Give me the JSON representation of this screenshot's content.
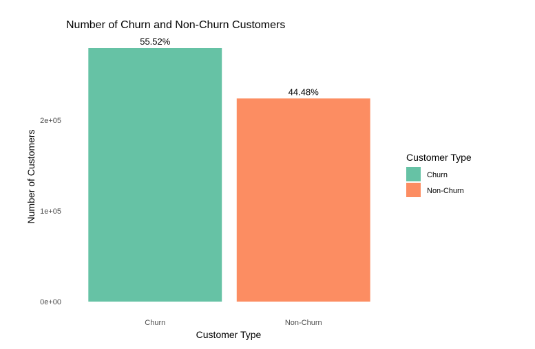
{
  "chart_data": {
    "type": "bar",
    "title": "Number of Churn and Non-Churn Customers",
    "xlabel": "Customer Type",
    "ylabel": "Number of Customers",
    "categories": [
      "Churn",
      "Non-Churn"
    ],
    "values": [
      279300,
      223800
    ],
    "data_labels": [
      "55.52%",
      "44.48%"
    ],
    "colors": [
      "#66c2a5",
      "#fc8d62"
    ],
    "ylim": [
      0,
      279300
    ],
    "yticks": [
      {
        "value": 0,
        "label": "0e+00"
      },
      {
        "value": 100000,
        "label": "1e+05"
      },
      {
        "value": 200000,
        "label": "2e+05"
      }
    ],
    "grid": false,
    "legend": {
      "title": "Customer Type",
      "position": "right",
      "entries": [
        "Churn",
        "Non-Churn"
      ]
    }
  }
}
